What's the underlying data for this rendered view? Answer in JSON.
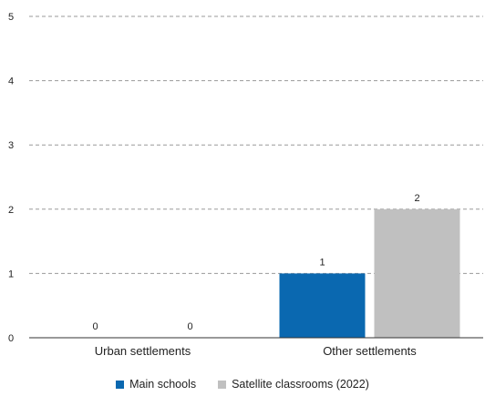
{
  "chart_data": {
    "type": "bar",
    "categories": [
      "Urban settlements",
      "Other settlements"
    ],
    "series": [
      {
        "name": "Main schools",
        "values": [
          0,
          1
        ],
        "color": "#0a68b0"
      },
      {
        "name": "Satellite classrooms (2022)",
        "values": [
          0,
          2
        ],
        "color": "#c0c0c0"
      }
    ],
    "ylim": [
      0,
      5
    ],
    "yticks": [
      0,
      1,
      2,
      3,
      4,
      5
    ],
    "grid": true,
    "legend": "bottom",
    "data_labels": true
  }
}
